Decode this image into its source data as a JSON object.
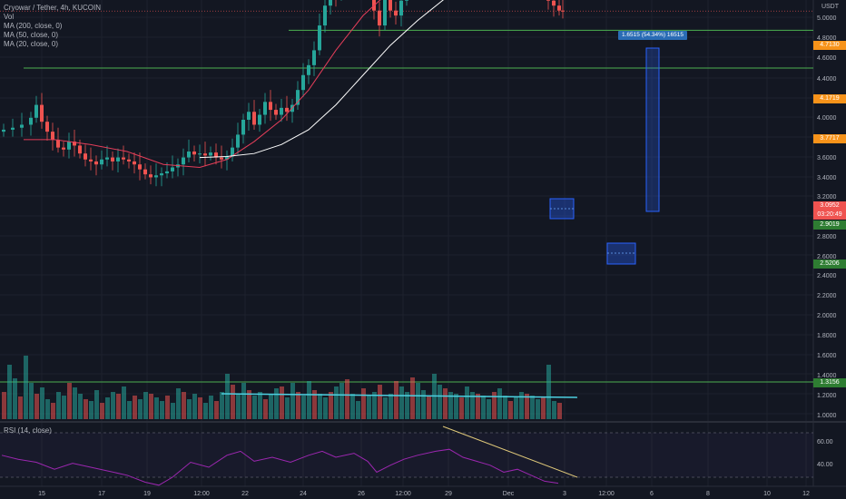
{
  "chart_header": {
    "symbol_line": "Cryowar / Tether, 4h, KUCOIN",
    "vol": "Vol",
    "ma200": "MA (200, close, 0)",
    "ma50": "MA (50, close, 0)",
    "ma20": "MA (20, close, 0)",
    "quote": "USDT"
  },
  "price_axis_labels": [
    "5.0000",
    "4.8000",
    "4.6000",
    "4.4000",
    "4.2000",
    "4.0000",
    "3.8000",
    "3.6000",
    "3.4000",
    "3.2000",
    "2.8000",
    "2.6000",
    "2.4000",
    "2.2000",
    "2.0000",
    "1.8000",
    "1.6000",
    "1.4000",
    "1.2000",
    "1.0000"
  ],
  "price_tags": {
    "t1": "4.7130",
    "t2": "4.1719",
    "t3": "3.7717",
    "current_price": "3.0952",
    "countdown": "03:20:49",
    "t4": "2.9019",
    "t5": "2.5206",
    "t6": "1.3156"
  },
  "measure_label": "1.6515 (54.34%) 16515",
  "rsi": {
    "title": "RSI (14, close)",
    "levels": [
      "60.00",
      "40.00"
    ]
  },
  "x_axis_labels": [
    "15",
    "17",
    "19",
    "12:00",
    "22",
    "24",
    "26",
    "12:00",
    "29",
    "Dec",
    "3",
    "12:00",
    "6",
    "8",
    "10",
    "12"
  ],
  "colors": {
    "background": "#131722",
    "up": "#26a69a",
    "down": "#ef5350",
    "orange_line": "#f7931a",
    "green_line": "#4caf50",
    "ma20": "#e53e5a",
    "ma50": "#ffffff",
    "rsi": "#9c27b0",
    "measure_blue": "#2962ff"
  }
}
